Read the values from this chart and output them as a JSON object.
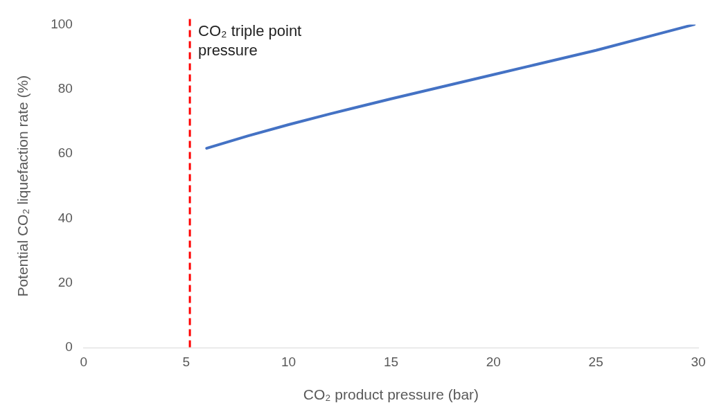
{
  "chart_data": {
    "type": "line",
    "xlabel": "CO₂ product pressure (bar)",
    "ylabel": "Potential CO₂ liquefaction rate (%)",
    "x": [
      6,
      8,
      10,
      12,
      15,
      18,
      20,
      22,
      25,
      28,
      29.8
    ],
    "series": [
      {
        "color": "#4472c4",
        "values": [
          61.7,
          65.5,
          69,
          72.3,
          77,
          81.5,
          84.5,
          87.5,
          92,
          97,
          100
        ]
      }
    ],
    "xlim": [
      0,
      30
    ],
    "xticks": [
      0,
      5,
      10,
      15,
      20,
      25,
      30
    ],
    "ylim": [
      0,
      100
    ],
    "yticks": [
      0,
      20,
      40,
      60,
      80,
      100
    ],
    "ref_lines": [
      {
        "axis": "x",
        "value": 5.18,
        "label": "CO₂ triple point pressure",
        "color": "#ff0000",
        "line_style": "dashed"
      }
    ],
    "grid": false,
    "legend": false,
    "marker": "none",
    "line_style": "solid"
  }
}
